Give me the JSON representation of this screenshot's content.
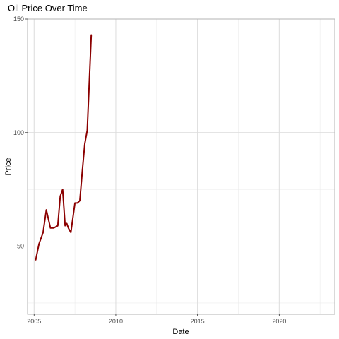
{
  "chart_data": {
    "type": "line",
    "title": "Oil Price Over Time",
    "xlabel": "Date",
    "ylabel": "Price",
    "xlim": [
      2004.6,
      2023.4
    ],
    "ylim": [
      20,
      150
    ],
    "x_major_ticks": [
      2005,
      2010,
      2015,
      2020
    ],
    "x_minor_ticks": [
      2007.5,
      2012.5,
      2017.5,
      2022.5
    ],
    "x_tick_labels": [
      "2005",
      "2010",
      "2015",
      "2020"
    ],
    "y_major_ticks": [
      50,
      100,
      150
    ],
    "y_minor_ticks": [
      25,
      75,
      125
    ],
    "y_tick_labels": [
      "50",
      "100",
      "150"
    ],
    "grid": true,
    "series": [
      {
        "color": "#8b0000",
        "x": [
          2005.1,
          2005.3,
          2005.55,
          2005.75,
          2006.0,
          2006.2,
          2006.45,
          2006.6,
          2006.75,
          2006.9,
          2007.0,
          2007.1,
          2007.25,
          2007.5,
          2007.65,
          2007.8,
          2007.95,
          2008.1,
          2008.25,
          2008.4,
          2008.5
        ],
        "values": [
          44,
          51,
          56,
          66,
          58,
          58,
          59,
          72,
          75,
          59,
          60,
          58,
          56,
          69,
          69,
          70,
          83,
          95,
          101,
          126,
          143
        ]
      }
    ]
  }
}
